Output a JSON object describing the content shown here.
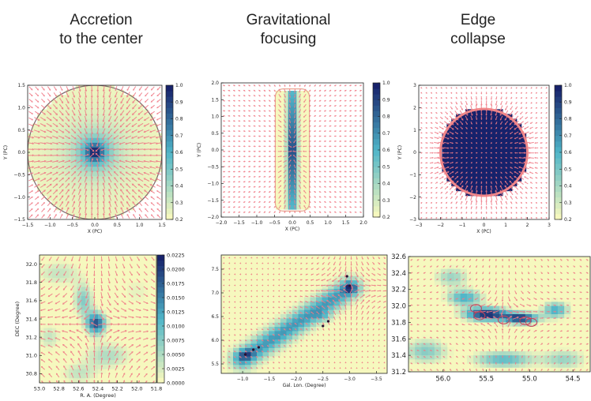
{
  "column_titles": [
    "Accretion\nto the center",
    "Gravitational\nfocusing",
    "Edge\ncollapse"
  ],
  "colors": {
    "arrow": "#f07a86",
    "boundary": "#7a6a6a",
    "map_low": "#f6f8be",
    "map_mid": "#4fb5c8",
    "map_high": "#17226b"
  },
  "chart_data": [
    {
      "id": "accretion-model",
      "type": "heatmap",
      "pattern": "radial",
      "title": "",
      "xlabel": "X (PC)",
      "ylabel": "Y (PC)",
      "xlim": [
        -1.5,
        1.5
      ],
      "ylim": [
        -1.5,
        1.5
      ],
      "xticks": [
        -1.5,
        -1.0,
        -0.5,
        0.0,
        0.5,
        1.0,
        1.5
      ],
      "yticks": [
        -1.5,
        -1.0,
        -0.5,
        0.0,
        0.5,
        1.0,
        1.5
      ],
      "xtick_labels": [
        "−1.5",
        "−1.0",
        "−0.5",
        "0.0",
        "0.5",
        "1.0",
        "1.5"
      ],
      "ytick_labels": [
        "−1.5",
        "−1.0",
        "−0.5",
        "0.0",
        "0.5",
        "1.0",
        "1.5"
      ],
      "colorbar": {
        "min": 0.2,
        "max": 1.0,
        "tick_labels": [
          "0.2",
          "0.3",
          "0.4",
          "0.5",
          "0.6",
          "0.7",
          "0.8",
          "0.9",
          "1.0"
        ]
      }
    },
    {
      "id": "focusing-model",
      "type": "heatmap",
      "pattern": "filament",
      "title": "",
      "xlabel": "X (PC)",
      "ylabel": "Y (PC)",
      "xlim": [
        -2.0,
        2.0
      ],
      "ylim": [
        -2.0,
        2.0
      ],
      "xticks": [
        -2.0,
        -1.5,
        -1.0,
        -0.5,
        0.0,
        0.5,
        1.0,
        1.5,
        2.0
      ],
      "yticks": [
        -2.0,
        -1.5,
        -1.0,
        -0.5,
        0.0,
        0.5,
        1.0,
        1.5,
        2.0
      ],
      "xtick_labels": [
        "−2.0",
        "−1.5",
        "−1.0",
        "−0.5",
        "0.0",
        "0.5",
        "1.0",
        "1.5",
        "2.0"
      ],
      "ytick_labels": [
        "−2.0",
        "−1.5",
        "−1.0",
        "−0.5",
        "0.0",
        "0.5",
        "1.0",
        "1.5",
        "2.0"
      ],
      "colorbar": {
        "min": 0.2,
        "max": 1.0,
        "tick_labels": [
          "0.2",
          "0.3",
          "0.4",
          "0.5",
          "0.6",
          "0.7",
          "0.8",
          "0.9",
          "1.0"
        ]
      }
    },
    {
      "id": "edge-model",
      "type": "heatmap",
      "pattern": "disk",
      "title": "",
      "xlabel": "X (PC)",
      "ylabel": "Y (PC)",
      "xlim": [
        -3,
        3
      ],
      "ylim": [
        -3,
        3
      ],
      "xticks": [
        -3,
        -2,
        -1,
        0,
        1,
        2,
        3
      ],
      "yticks": [
        -3,
        -2,
        -1,
        0,
        1,
        2,
        3
      ],
      "xtick_labels": [
        "−3",
        "−2",
        "−1",
        "0",
        "1",
        "2",
        "3"
      ],
      "ytick_labels": [
        "−3",
        "−2",
        "−1",
        "0",
        "1",
        "2",
        "3"
      ],
      "colorbar": {
        "min": 0.2,
        "max": 1.0,
        "tick_labels": [
          "0.2",
          "0.3",
          "0.4",
          "0.5",
          "0.6",
          "0.7",
          "0.8",
          "0.9",
          "1.0"
        ]
      }
    },
    {
      "id": "obs-radec",
      "type": "heatmap",
      "pattern": "obs_hub",
      "title": "",
      "xlabel": "R. A. (Degree)",
      "ylabel": "DEC (Degree)",
      "xlim": [
        53.0,
        51.8
      ],
      "ylim": [
        30.7,
        32.1
      ],
      "xticks": [
        53.0,
        52.8,
        52.6,
        52.4,
        52.2,
        52.0,
        51.8
      ],
      "yticks": [
        30.8,
        31.0,
        31.2,
        31.4,
        31.6,
        31.8,
        32.0
      ],
      "xtick_labels": [
        "53.0",
        "52.8",
        "52.6",
        "52.4",
        "52.2",
        "52.0",
        "51.8"
      ],
      "ytick_labels": [
        "30.8",
        "31.0",
        "31.2",
        "31.4",
        "31.6",
        "31.8",
        "32.0"
      ],
      "colorbar": {
        "min": 0.0,
        "max": 0.0225,
        "tick_labels": [
          "0.0000",
          "0.0025",
          "0.0050",
          "0.0075",
          "0.0100",
          "0.0125",
          "0.0150",
          "0.0175",
          "0.0200",
          "0.0225"
        ]
      }
    },
    {
      "id": "obs-gal",
      "type": "heatmap",
      "pattern": "obs_filament",
      "title": "",
      "xlabel": "Gal. Lon. (Degree)",
      "ylabel": "",
      "xlim": [
        -0.6,
        -3.7
      ],
      "ylim": [
        5.3,
        7.8
      ],
      "xticks": [
        -1.0,
        -1.5,
        -2.0,
        -2.5,
        -3.0,
        -3.5
      ],
      "yticks": [
        5.5,
        6.0,
        6.5,
        7.0,
        7.5
      ],
      "xtick_labels": [
        "−1.0",
        "−1.5",
        "−2.0",
        "−2.5",
        "−3.0",
        "−3.5"
      ],
      "ytick_labels": [
        "5.5",
        "6.0",
        "6.5",
        "7.0",
        "7.5"
      ],
      "colorbar": null
    },
    {
      "id": "obs-edge",
      "type": "heatmap",
      "pattern": "obs_edge",
      "title": "",
      "xlabel": "",
      "ylabel": "",
      "xlim": [
        56.4,
        54.3
      ],
      "ylim": [
        31.2,
        32.6
      ],
      "xticks": [
        56.0,
        55.5,
        55.0,
        54.5
      ],
      "yticks": [
        31.2,
        31.4,
        31.6,
        31.8,
        32.0,
        32.2,
        32.4,
        32.6
      ],
      "xtick_labels": [
        "56.0",
        "55.5",
        "55.0",
        "54.5"
      ],
      "ytick_labels": [
        "31.2",
        "31.4",
        "31.6",
        "31.8",
        "32.0",
        "32.2",
        "32.4",
        "32.6"
      ],
      "colorbar": null
    }
  ]
}
